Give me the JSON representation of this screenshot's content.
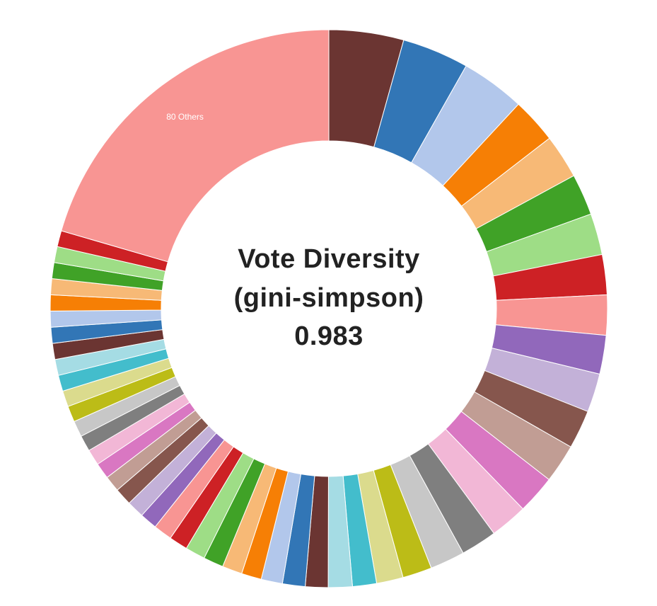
{
  "center": {
    "line1": "Vote Diversity",
    "line2": "(gini-simpson)",
    "line3": "0.983"
  },
  "chart_data": {
    "type": "donut",
    "title": "Vote Diversity (gini-simpson) 0.983",
    "slice_label": "80 Others",
    "slices": [
      {
        "value": 5.6,
        "color": "#6b3532"
      },
      {
        "value": 5.0,
        "color": "#3276b6"
      },
      {
        "value": 4.8,
        "color": "#b2c7eb"
      },
      {
        "value": 3.4,
        "color": "#f67f05"
      },
      {
        "value": 3.3,
        "color": "#f7b976"
      },
      {
        "value": 3.1,
        "color": "#40a227"
      },
      {
        "value": 3.1,
        "color": "#9edd86"
      },
      {
        "value": 3.0,
        "color": "#cd2125"
      },
      {
        "value": 3.0,
        "color": "#f89593"
      },
      {
        "value": 2.9,
        "color": "#9168bb"
      },
      {
        "value": 2.9,
        "color": "#c3b1d8"
      },
      {
        "value": 2.9,
        "color": "#86564d"
      },
      {
        "value": 2.9,
        "color": "#c19d94"
      },
      {
        "value": 2.9,
        "color": "#d977c2"
      },
      {
        "value": 2.8,
        "color": "#f2b7d6"
      },
      {
        "value": 2.7,
        "color": "#7f7f7f"
      },
      {
        "value": 2.6,
        "color": "#c7c7c7"
      },
      {
        "value": 2.2,
        "color": "#bcbc17"
      },
      {
        "value": 2.0,
        "color": "#dbdb8d"
      },
      {
        "value": 1.8,
        "color": "#43bdcc"
      },
      {
        "value": 1.8,
        "color": "#a5dce4"
      },
      {
        "value": 1.7,
        "color": "#6b3532"
      },
      {
        "value": 1.7,
        "color": "#3276b6"
      },
      {
        "value": 1.6,
        "color": "#b2c7eb"
      },
      {
        "value": 1.5,
        "color": "#f67f05"
      },
      {
        "value": 1.5,
        "color": "#f7b976"
      },
      {
        "value": 1.5,
        "color": "#40a227"
      },
      {
        "value": 1.5,
        "color": "#9edd86"
      },
      {
        "value": 1.4,
        "color": "#cd2125"
      },
      {
        "value": 1.4,
        "color": "#f89593"
      },
      {
        "value": 1.3,
        "color": "#9168bb"
      },
      {
        "value": 1.3,
        "color": "#c3b1d8"
      },
      {
        "value": 1.3,
        "color": "#86564d"
      },
      {
        "value": 1.2,
        "color": "#c19d94"
      },
      {
        "value": 1.2,
        "color": "#d977c2"
      },
      {
        "value": 1.2,
        "color": "#f2b7d6"
      },
      {
        "value": 1.2,
        "color": "#7f7f7f"
      },
      {
        "value": 1.2,
        "color": "#c7c7c7"
      },
      {
        "value": 1.2,
        "color": "#bcbc17"
      },
      {
        "value": 1.2,
        "color": "#dbdb8d"
      },
      {
        "value": 1.2,
        "color": "#43bdcc"
      },
      {
        "value": 1.2,
        "color": "#a5dce4"
      },
      {
        "value": 1.2,
        "color": "#6b3532"
      },
      {
        "value": 1.2,
        "color": "#3276b6"
      },
      {
        "value": 1.2,
        "color": "#b2c7eb"
      },
      {
        "value": 1.2,
        "color": "#f67f05"
      },
      {
        "value": 1.2,
        "color": "#f7b976"
      },
      {
        "value": 1.2,
        "color": "#40a227"
      },
      {
        "value": 1.2,
        "color": "#9edd86"
      },
      {
        "value": 1.2,
        "color": "#cd2125"
      },
      {
        "value": 26.5,
        "color": "#f89593",
        "label": "80 Others"
      }
    ]
  }
}
